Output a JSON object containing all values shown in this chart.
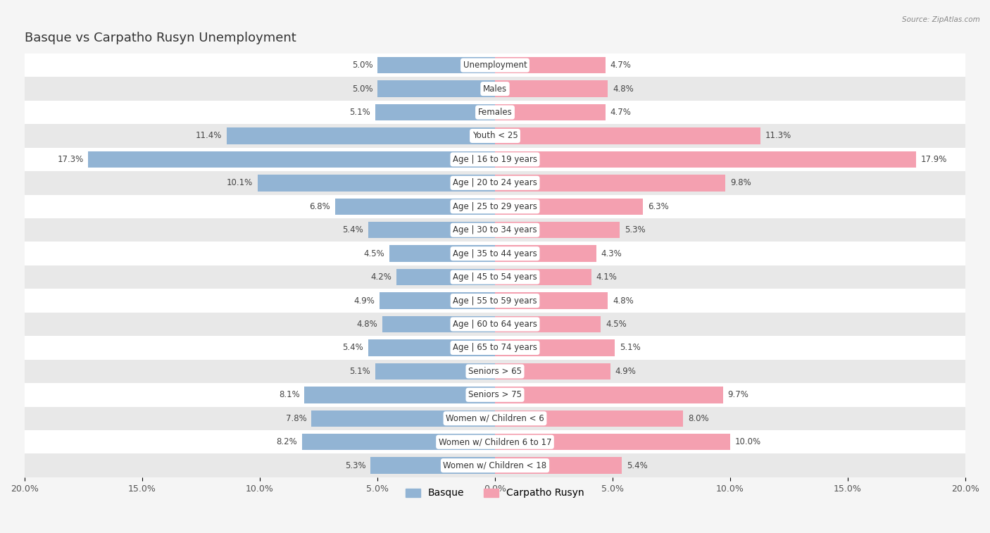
{
  "title": "Basque vs Carpatho Rusyn Unemployment",
  "source": "Source: ZipAtlas.com",
  "categories": [
    "Unemployment",
    "Males",
    "Females",
    "Youth < 25",
    "Age | 16 to 19 years",
    "Age | 20 to 24 years",
    "Age | 25 to 29 years",
    "Age | 30 to 34 years",
    "Age | 35 to 44 years",
    "Age | 45 to 54 years",
    "Age | 55 to 59 years",
    "Age | 60 to 64 years",
    "Age | 65 to 74 years",
    "Seniors > 65",
    "Seniors > 75",
    "Women w/ Children < 6",
    "Women w/ Children 6 to 17",
    "Women w/ Children < 18"
  ],
  "basque": [
    5.0,
    5.0,
    5.1,
    11.4,
    17.3,
    10.1,
    6.8,
    5.4,
    4.5,
    4.2,
    4.9,
    4.8,
    5.4,
    5.1,
    8.1,
    7.8,
    8.2,
    5.3
  ],
  "carpatho_rusyn": [
    4.7,
    4.8,
    4.7,
    11.3,
    17.9,
    9.8,
    6.3,
    5.3,
    4.3,
    4.1,
    4.8,
    4.5,
    5.1,
    4.9,
    9.7,
    8.0,
    10.0,
    5.4
  ],
  "basque_color": "#92b4d4",
  "carpatho_rusyn_color": "#f4a0b0",
  "xlim": 20.0,
  "background_color": "#f0f0f0",
  "row_bg_white": "#ffffff",
  "row_bg_gray": "#e8e8e8",
  "title_fontsize": 13,
  "label_fontsize": 8.5,
  "value_fontsize": 8.5,
  "tick_fontsize": 9,
  "legend_fontsize": 10,
  "bar_height": 0.7
}
